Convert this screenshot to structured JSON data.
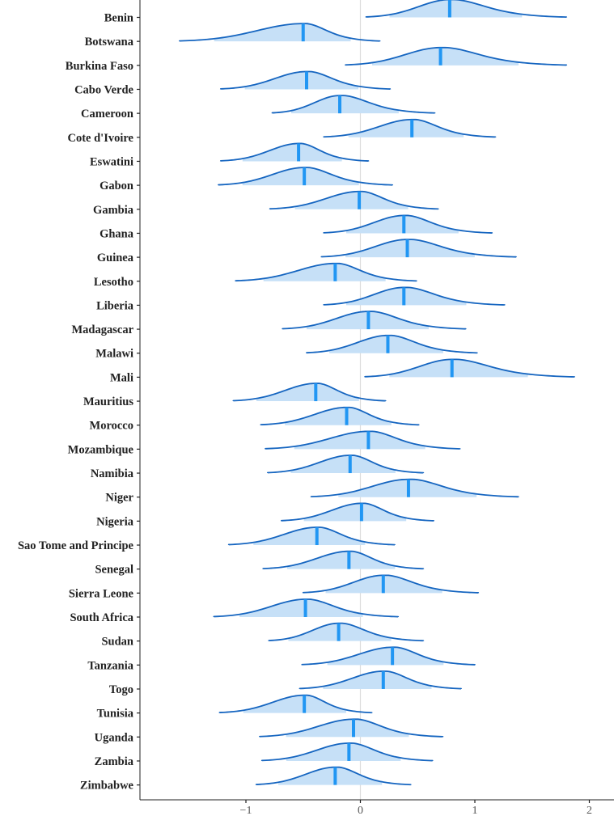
{
  "chart_data": {
    "type": "ridgeline",
    "title": "",
    "xlabel": "",
    "ylabel": "",
    "xlim": [
      -1.9,
      2.25
    ],
    "x_ticks": [
      -1,
      0,
      1,
      2
    ],
    "x_tick_labels": [
      "−1",
      "0",
      "1",
      "2"
    ],
    "reference_line_x": 0,
    "colors": {
      "fill": "#c6e0f7",
      "line": "#1565c0",
      "median": "#2196f3"
    },
    "categories": [
      "Benin",
      "Botswana",
      "Burkina Faso",
      "Cabo Verde",
      "Cameroon",
      "Cote d'Ivoire",
      "Eswatini",
      "Gabon",
      "Gambia",
      "Ghana",
      "Guinea",
      "Lesotho",
      "Liberia",
      "Madagascar",
      "Malawi",
      "Mali",
      "Mauritius",
      "Morocco",
      "Mozambique",
      "Namibia",
      "Niger",
      "Nigeria",
      "Sao Tome and Principe",
      "Senegal",
      "Sierra Leone",
      "South Africa",
      "Sudan",
      "Tanzania",
      "Togo",
      "Tunisia",
      "Uganda",
      "Zambia",
      "Zimbabwe"
    ],
    "series": [
      {
        "label": "Benin",
        "min": 0.05,
        "median": 0.78,
        "max": 1.8
      },
      {
        "label": "Botswana",
        "min": -1.58,
        "median": -0.5,
        "max": 0.17
      },
      {
        "label": "Burkina Faso",
        "min": -0.13,
        "median": 0.7,
        "max": 1.8
      },
      {
        "label": "Cabo Verde",
        "min": -1.22,
        "median": -0.47,
        "max": 0.26
      },
      {
        "label": "Cameroon",
        "min": -0.77,
        "median": -0.18,
        "max": 0.65
      },
      {
        "label": "Cote d'Ivoire",
        "min": -0.32,
        "median": 0.45,
        "max": 1.18
      },
      {
        "label": "Eswatini",
        "min": -1.22,
        "median": -0.54,
        "max": 0.07
      },
      {
        "label": "Gabon",
        "min": -1.24,
        "median": -0.49,
        "max": 0.28
      },
      {
        "label": "Gambia",
        "min": -0.79,
        "median": -0.01,
        "max": 0.68
      },
      {
        "label": "Ghana",
        "min": -0.32,
        "median": 0.38,
        "max": 1.15
      },
      {
        "label": "Guinea",
        "min": -0.34,
        "median": 0.41,
        "max": 1.36
      },
      {
        "label": "Lesotho",
        "min": -1.09,
        "median": -0.22,
        "max": 0.49
      },
      {
        "label": "Liberia",
        "min": -0.32,
        "median": 0.38,
        "max": 1.26
      },
      {
        "label": "Madagascar",
        "min": -0.68,
        "median": 0.07,
        "max": 0.92
      },
      {
        "label": "Malawi",
        "min": -0.47,
        "median": 0.24,
        "max": 1.02
      },
      {
        "label": "Mali",
        "min": 0.04,
        "median": 0.8,
        "max": 1.87
      },
      {
        "label": "Mauritius",
        "min": -1.11,
        "median": -0.39,
        "max": 0.22
      },
      {
        "label": "Morocco",
        "min": -0.87,
        "median": -0.12,
        "max": 0.51
      },
      {
        "label": "Mozambique",
        "min": -0.83,
        "median": 0.07,
        "max": 0.87
      },
      {
        "label": "Namibia",
        "min": -0.81,
        "median": -0.09,
        "max": 0.55
      },
      {
        "label": "Niger",
        "min": -0.43,
        "median": 0.42,
        "max": 1.38
      },
      {
        "label": "Nigeria",
        "min": -0.69,
        "median": 0.01,
        "max": 0.64
      },
      {
        "label": "Sao Tome and Principe",
        "min": -1.15,
        "median": -0.38,
        "max": 0.3
      },
      {
        "label": "Senegal",
        "min": -0.85,
        "median": -0.1,
        "max": 0.55
      },
      {
        "label": "Sierra Leone",
        "min": -0.5,
        "median": 0.2,
        "max": 1.03
      },
      {
        "label": "South Africa",
        "min": -1.28,
        "median": -0.48,
        "max": 0.33
      },
      {
        "label": "Sudan",
        "min": -0.8,
        "median": -0.19,
        "max": 0.55
      },
      {
        "label": "Tanzania",
        "min": -0.51,
        "median": 0.28,
        "max": 1.0
      },
      {
        "label": "Togo",
        "min": -0.53,
        "median": 0.2,
        "max": 0.88
      },
      {
        "label": "Tunisia",
        "min": -1.23,
        "median": -0.49,
        "max": 0.1
      },
      {
        "label": "Uganda",
        "min": -0.88,
        "median": -0.06,
        "max": 0.72
      },
      {
        "label": "Zambia",
        "min": -0.86,
        "median": -0.1,
        "max": 0.63
      },
      {
        "label": "Zimbabwe",
        "min": -0.91,
        "median": -0.22,
        "max": 0.44
      }
    ]
  }
}
